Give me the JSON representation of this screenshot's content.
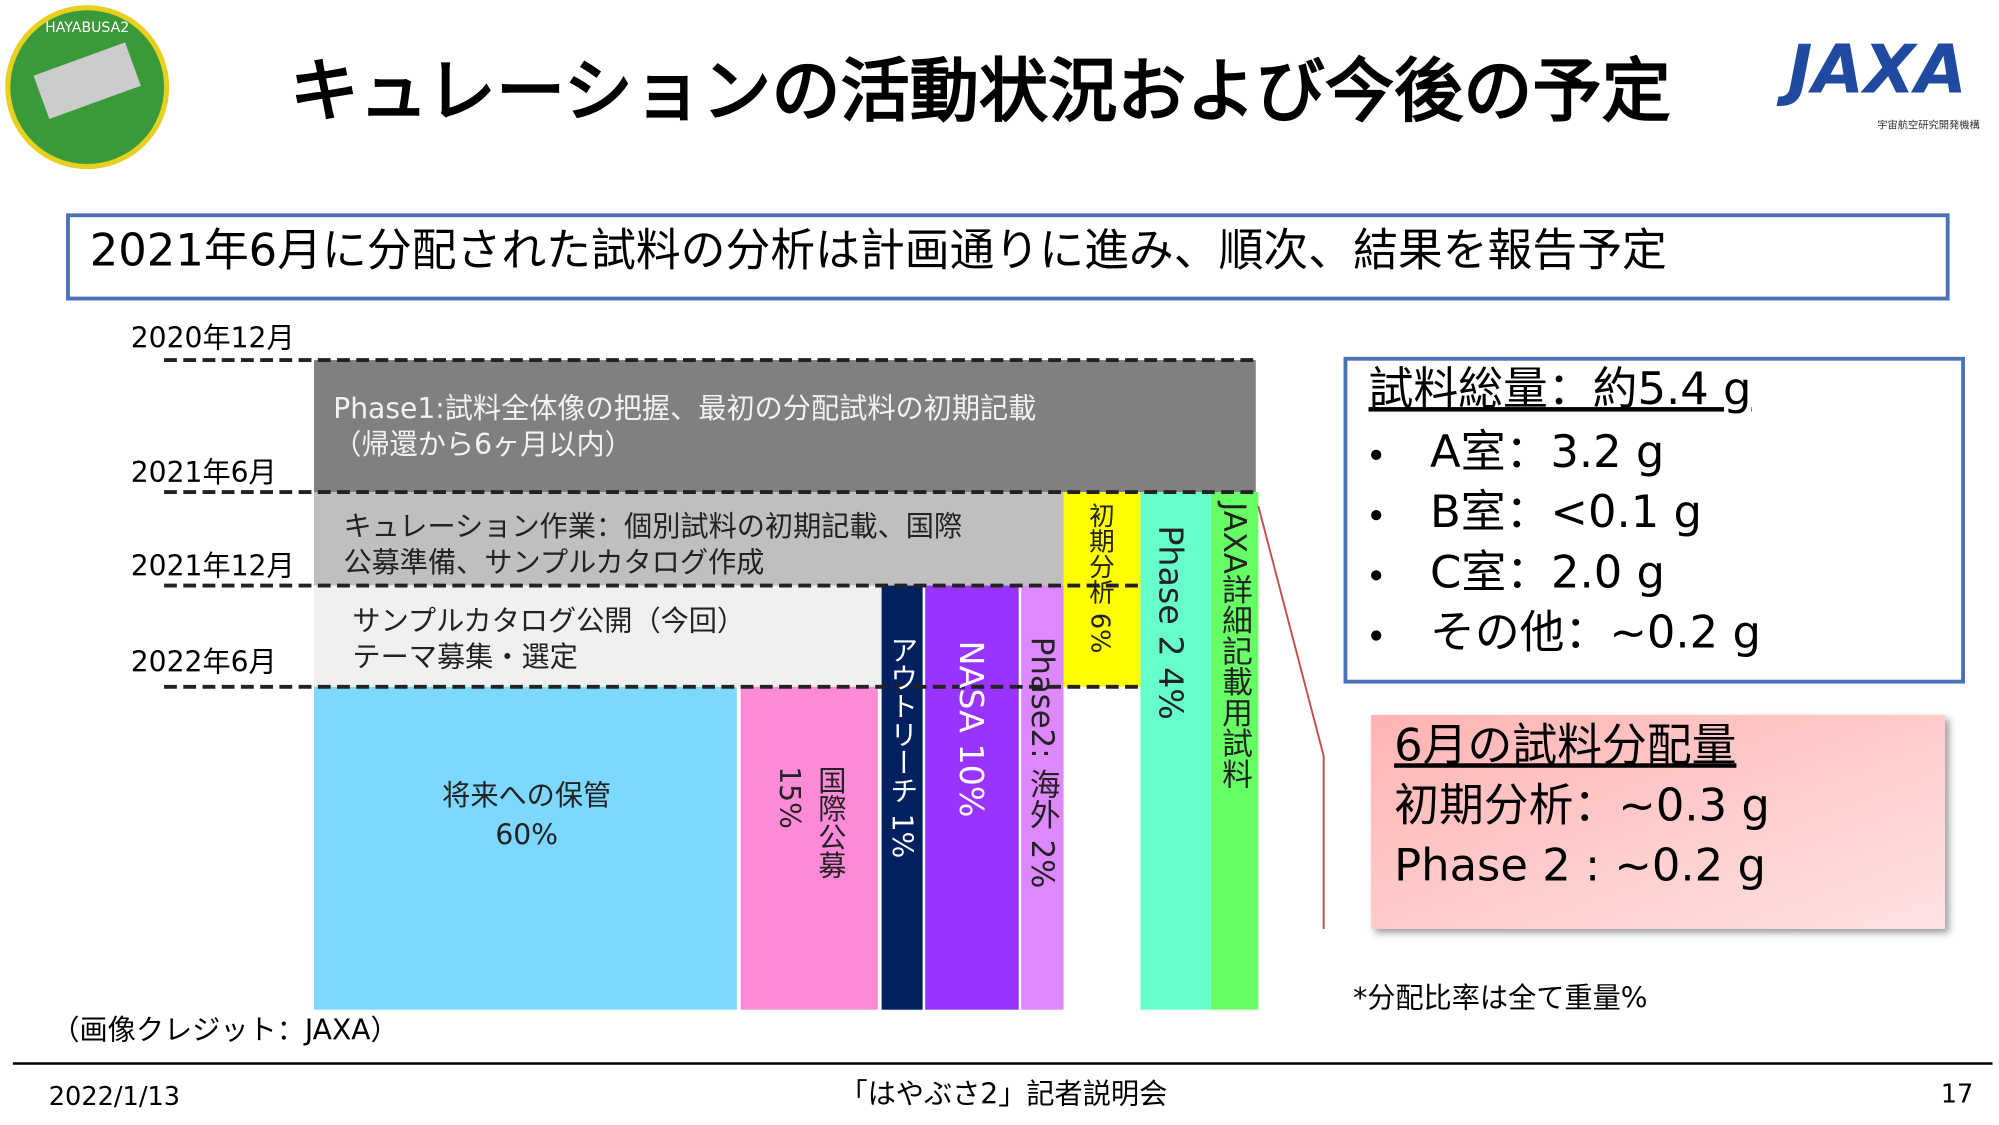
{
  "header": {
    "title": "キュレーションの活動状況および今後の予定",
    "logo_left_text": "HAYABUSA2",
    "logo_right_text": "JAXA",
    "logo_right_subtitle": "宇宙航空研究開発機構"
  },
  "subtitle": "2021年6月に分配された試料の分析は計画通りに進み、順次、結果を報告予定",
  "timeline": {
    "dates": [
      "2020年12月",
      "2021年6月",
      "2021年12月",
      "2022年6月"
    ],
    "phase1": [
      "Phase1:試料全体像の把握、最初の分配試料の初期記載",
      "（帰還から6ヶ月以内）"
    ],
    "curation": [
      "キュレーション作業：個別試料の初期記載、国際",
      "公募準備、サンプルカタログ作成"
    ],
    "catalog": [
      "サンプルカタログ公開（今回）",
      "テーマ募集・選定"
    ],
    "storage": [
      "将来への保管",
      "60%"
    ],
    "international": [
      "国際公募",
      "15%"
    ],
    "outreach": "アウトリーチ 1%",
    "nasa": "NASA 10%",
    "overseas": "Phase2: 海外 2%",
    "initial": "初期分析 6%",
    "phase2": "Phase 2  4%",
    "jaxa": "JAXA詳細記載用試料"
  },
  "summary_box": {
    "title": "試料総量：約5.4 g",
    "items": [
      "A室：3.2 g",
      "B室：<0.1 g",
      "C室：2.0 g",
      "その他：~0.2 g"
    ]
  },
  "distribution_box": {
    "title": "6月の試料分配量",
    "lines": [
      "初期分析：~0.3 g",
      "Phase 2 : ~0.2 g"
    ]
  },
  "note": "*分配比率は全て重量%",
  "credit": "（画像クレジット：JAXA）",
  "footer": {
    "date": "2022/1/13",
    "event": "「はやぶさ2」記者説明会",
    "page": "17"
  }
}
